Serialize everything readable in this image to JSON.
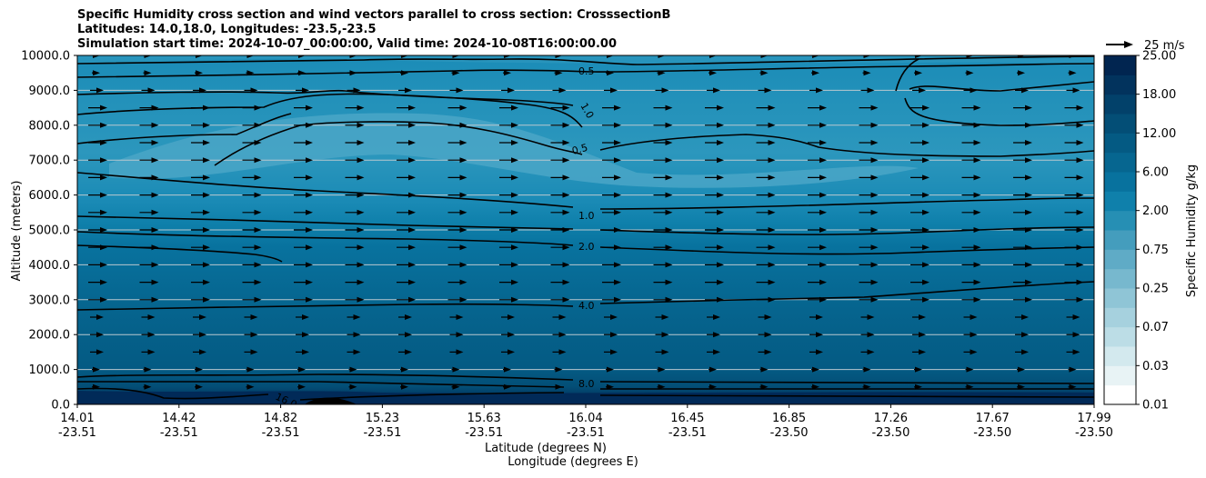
{
  "title_lines": [
    "Specific Humidity cross section and wind vectors parallel to cross section: CrosssectionB",
    "Latitudes: 14.0,18.0, Longitudes: -23.5,-23.5",
    "Simulation start time: 2024-10-07_00:00:00, Valid time: 2024-10-08T16:00:00.00"
  ],
  "chart_data": {
    "type": "contourf-crosssection",
    "title": "Specific Humidity cross section and wind vectors parallel to cross section: CrosssectionB",
    "ylabel": "Altitude (meters)",
    "xlabel_line1": "Latitude (degrees N)",
    "xlabel_line2": "Longitude (degrees E)",
    "ylim": [
      0,
      10000
    ],
    "y_ticks": [
      "0.0",
      "1000.0",
      "2000.0",
      "3000.0",
      "4000.0",
      "5000.0",
      "6000.0",
      "7000.0",
      "8000.0",
      "9000.0",
      "10000.0"
    ],
    "x_ticks": [
      {
        "lat": "14.01",
        "lon": "-23.51"
      },
      {
        "lat": "14.42",
        "lon": "-23.51"
      },
      {
        "lat": "14.82",
        "lon": "-23.51"
      },
      {
        "lat": "15.23",
        "lon": "-23.51"
      },
      {
        "lat": "15.63",
        "lon": "-23.51"
      },
      {
        "lat": "16.04",
        "lon": "-23.51"
      },
      {
        "lat": "16.45",
        "lon": "-23.51"
      },
      {
        "lat": "16.85",
        "lon": "-23.50"
      },
      {
        "lat": "17.26",
        "lon": "-23.50"
      },
      {
        "lat": "17.67",
        "lon": "-23.50"
      },
      {
        "lat": "17.99",
        "lon": "-23.50"
      }
    ],
    "colorbar": {
      "label": "Specific Humidity g/kg",
      "levels": [
        0.01,
        0.02,
        0.03,
        0.05,
        0.07,
        0.1,
        0.25,
        0.5,
        0.75,
        1.0,
        2.0,
        4.0,
        6.0,
        8.0,
        12.0,
        16.0,
        18.0,
        20.0,
        25.0
      ],
      "tick_labels": [
        "0.01",
        "0.03",
        "0.07",
        "0.25",
        "0.75",
        "2.00",
        "6.00",
        "12.00",
        "18.00",
        "25.00"
      ],
      "colors": [
        "#ffffff",
        "#e8f3f5",
        "#d3e9ee",
        "#bcdde6",
        "#a6d1de",
        "#8fc5d6",
        "#77b8ce",
        "#5fabc6",
        "#449dbd",
        "#268fb4",
        "#0f80ab",
        "#08729e",
        "#066690",
        "#045a83",
        "#034e76",
        "#02416a",
        "#02335d",
        "#012550"
      ]
    },
    "contour_lines": [
      {
        "label": "0.5",
        "altitude_m": 9500
      },
      {
        "label": "0.5",
        "altitude_m": 7050
      },
      {
        "label": "1.0",
        "altitude_m": 8400
      },
      {
        "label": "1.0",
        "altitude_m": 5500
      },
      {
        "label": "2.0",
        "altitude_m": 4500
      },
      {
        "label": "4.0",
        "altitude_m": 2850
      },
      {
        "label": "8.0",
        "altitude_m": 600
      },
      {
        "label": "16.0",
        "altitude_m": 350
      }
    ],
    "wind_reference": {
      "label": "25 m/s",
      "speed": 25
    },
    "wind_vectors": {
      "direction": "along-section (northward)",
      "altitude_levels_m": [
        500,
        1000,
        1500,
        2000,
        2500,
        3000,
        3500,
        4000,
        4500,
        5000,
        5500,
        6000,
        6500,
        7000,
        7500,
        8000,
        8500,
        9000,
        9500,
        10000
      ]
    }
  }
}
